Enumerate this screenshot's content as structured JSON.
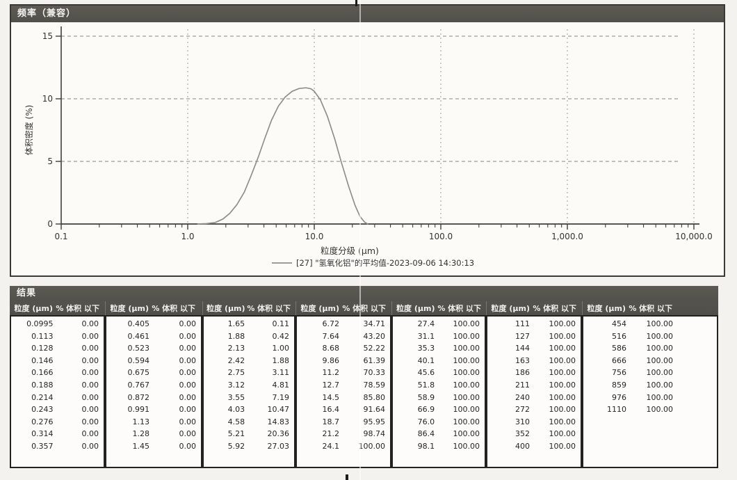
{
  "chart_panel": {
    "title": "频率（兼容）",
    "y_axis_label": "体积密度 (%)",
    "x_axis_label": "粒度分级 (μm)",
    "legend_label": "[27] \"氢氧化铝\"的平均值-2023-09-06 14:30:13"
  },
  "chart_data": {
    "type": "line",
    "title": "频率（兼容）",
    "xlabel": "粒度分级 (μm)",
    "ylabel": "体积密度 (%)",
    "x_scale": "log",
    "xlim": [
      0.1,
      10000
    ],
    "ylim": [
      0,
      15
    ],
    "y_ticks": [
      0,
      5,
      10,
      15
    ],
    "x_major_ticks": [
      0.1,
      1.0,
      10.0,
      100.0,
      1000.0,
      10000.0
    ],
    "x_tick_labels": [
      "0.1",
      "1.0",
      "10.0",
      "100.0",
      "1,000.0",
      "10,000.0"
    ],
    "grid": "dashed",
    "legend_position": "bottom-center",
    "series": [
      {
        "name": "[27] \"氢氧化铝\"的平均值-2023-09-06 14:30:13",
        "color": "#8f8f8c",
        "x": [
          1.2,
          1.4,
          1.65,
          1.9,
          2.15,
          2.45,
          2.8,
          3.15,
          3.6,
          4.05,
          4.6,
          5.2,
          5.9,
          6.7,
          7.6,
          8.6,
          9.4,
          10.0,
          11.2,
          12.7,
          14.5,
          16.4,
          18.7,
          21.0,
          23.0,
          25.0,
          26.5
        ],
        "y": [
          0,
          0.03,
          0.12,
          0.4,
          0.85,
          1.55,
          2.55,
          3.8,
          5.3,
          6.8,
          8.3,
          9.4,
          10.15,
          10.6,
          10.82,
          10.88,
          10.8,
          10.6,
          9.9,
          8.6,
          6.8,
          4.9,
          3.0,
          1.5,
          0.6,
          0.15,
          0
        ]
      }
    ]
  },
  "results_panel": {
    "title": "结果",
    "col_headers": {
      "size": "粒度 (μm)",
      "pct": "% 体积 以下"
    },
    "groups": [
      [
        [
          "0.0995",
          "0.00"
        ],
        [
          "0.113",
          "0.00"
        ],
        [
          "0.128",
          "0.00"
        ],
        [
          "0.146",
          "0.00"
        ],
        [
          "0.166",
          "0.00"
        ],
        [
          "0.188",
          "0.00"
        ],
        [
          "0.214",
          "0.00"
        ],
        [
          "0.243",
          "0.00"
        ],
        [
          "0.276",
          "0.00"
        ],
        [
          "0.314",
          "0.00"
        ],
        [
          "0.357",
          "0.00"
        ]
      ],
      [
        [
          "0.405",
          "0.00"
        ],
        [
          "0.461",
          "0.00"
        ],
        [
          "0.523",
          "0.00"
        ],
        [
          "0.594",
          "0.00"
        ],
        [
          "0.675",
          "0.00"
        ],
        [
          "0.767",
          "0.00"
        ],
        [
          "0.872",
          "0.00"
        ],
        [
          "0.991",
          "0.00"
        ],
        [
          "1.13",
          "0.00"
        ],
        [
          "1.28",
          "0.00"
        ],
        [
          "1.45",
          "0.00"
        ]
      ],
      [
        [
          "1.65",
          "0.11"
        ],
        [
          "1.88",
          "0.42"
        ],
        [
          "2.13",
          "1.00"
        ],
        [
          "2.42",
          "1.88"
        ],
        [
          "2.75",
          "3.11"
        ],
        [
          "3.12",
          "4.81"
        ],
        [
          "3.55",
          "7.19"
        ],
        [
          "4.03",
          "10.47"
        ],
        [
          "4.58",
          "14.83"
        ],
        [
          "5.21",
          "20.36"
        ],
        [
          "5.92",
          "27.03"
        ]
      ],
      [
        [
          "6.72",
          "34.71"
        ],
        [
          "7.64",
          "43.20"
        ],
        [
          "8.68",
          "52.22"
        ],
        [
          "9.86",
          "61.39"
        ],
        [
          "11.2",
          "70.33"
        ],
        [
          "12.7",
          "78.59"
        ],
        [
          "14.5",
          "85.80"
        ],
        [
          "16.4",
          "91.64"
        ],
        [
          "18.7",
          "95.95"
        ],
        [
          "21.2",
          "98.74"
        ],
        [
          "24.1",
          "100.00"
        ]
      ],
      [
        [
          "27.4",
          "100.00"
        ],
        [
          "31.1",
          "100.00"
        ],
        [
          "35.3",
          "100.00"
        ],
        [
          "40.1",
          "100.00"
        ],
        [
          "45.6",
          "100.00"
        ],
        [
          "51.8",
          "100.00"
        ],
        [
          "58.9",
          "100.00"
        ],
        [
          "66.9",
          "100.00"
        ],
        [
          "76.0",
          "100.00"
        ],
        [
          "86.4",
          "100.00"
        ],
        [
          "98.1",
          "100.00"
        ]
      ],
      [
        [
          "111",
          "100.00"
        ],
        [
          "127",
          "100.00"
        ],
        [
          "144",
          "100.00"
        ],
        [
          "163",
          "100.00"
        ],
        [
          "186",
          "100.00"
        ],
        [
          "211",
          "100.00"
        ],
        [
          "240",
          "100.00"
        ],
        [
          "272",
          "100.00"
        ],
        [
          "310",
          "100.00"
        ],
        [
          "352",
          "100.00"
        ],
        [
          "400",
          "100.00"
        ]
      ],
      [
        [
          "454",
          "100.00"
        ],
        [
          "516",
          "100.00"
        ],
        [
          "586",
          "100.00"
        ],
        [
          "666",
          "100.00"
        ],
        [
          "756",
          "100.00"
        ],
        [
          "859",
          "100.00"
        ],
        [
          "976",
          "100.00"
        ],
        [
          "1110",
          "100.00"
        ]
      ]
    ]
  },
  "colors": {
    "header_bar": "#55534d",
    "curve": "#8f8f8c",
    "paper": "#f4f2ee",
    "grid": "#9d9c98",
    "axis": "#3f3e3a"
  }
}
